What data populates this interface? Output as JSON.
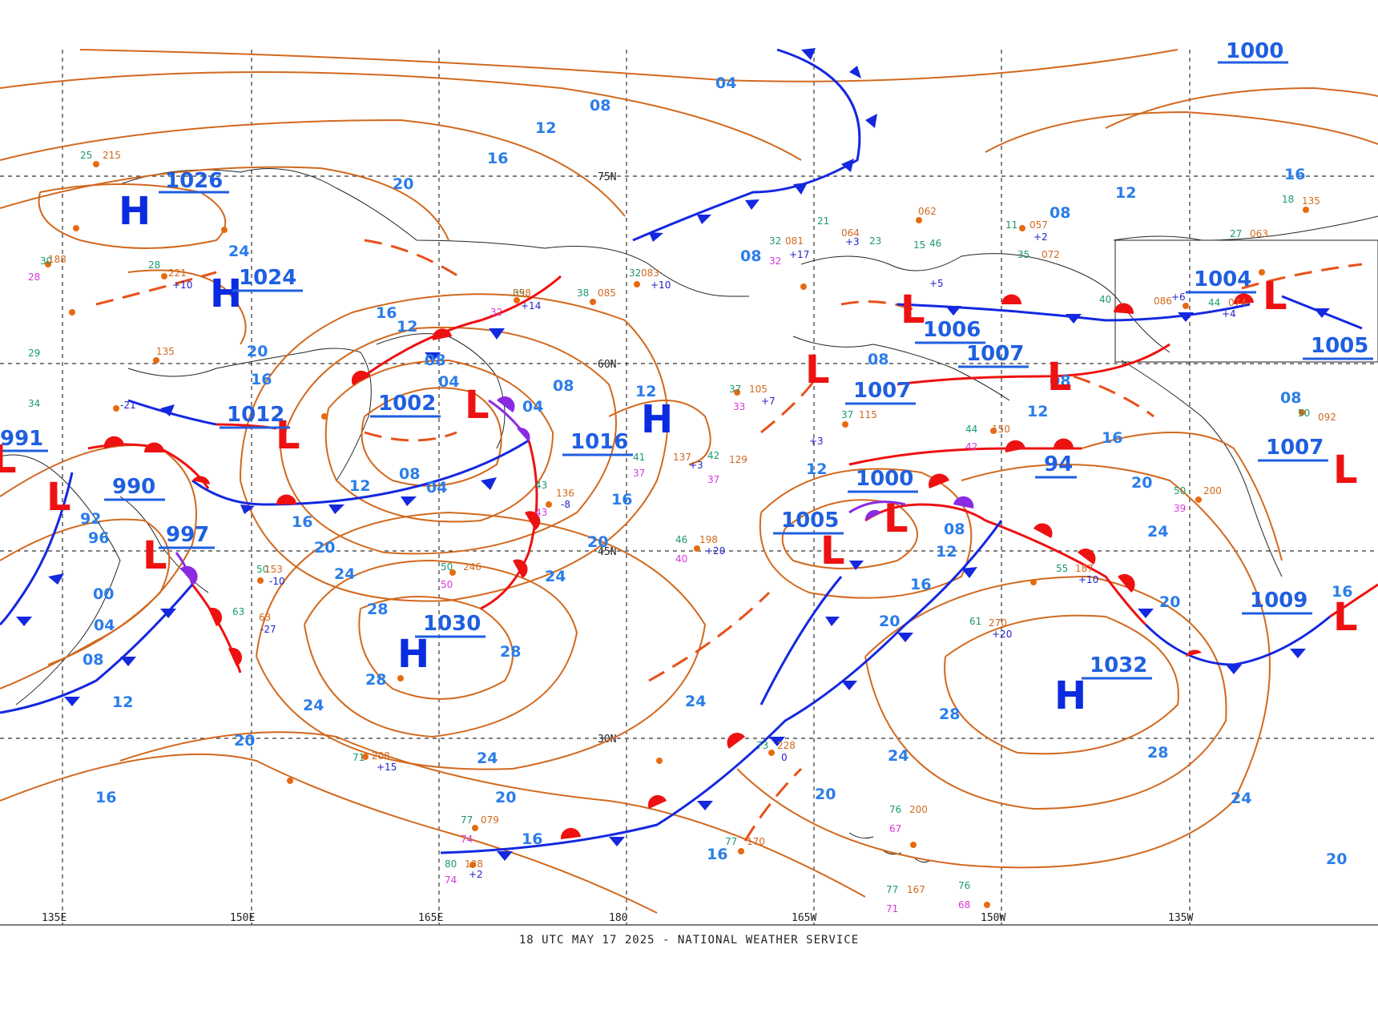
{
  "map": {
    "footer": "18 UTC MAY 17 2025 - NATIONAL WEATHER SERVICE",
    "latitudes": [
      "75N",
      "60N",
      "45N",
      "30N"
    ],
    "longitudes": [
      "135E",
      "150E",
      "165E",
      "180",
      "165W",
      "150W",
      "135W"
    ],
    "colors": {
      "isobar": "#d2691e",
      "isobar_label": "#2b7de9",
      "high": "#0b2be0",
      "low": "#ee1111",
      "cold_front": "#1428e0",
      "warm_front": "#ee1111",
      "occluded_front": "#8a2be2",
      "trough": "#e8501a"
    },
    "highs": [
      {
        "symbol": "H",
        "pressure": "1026"
      },
      {
        "symbol": "H",
        "pressure": "1024"
      },
      {
        "symbol": "H",
        "pressure": ""
      },
      {
        "symbol": "H",
        "pressure": "1030"
      },
      {
        "symbol": "H",
        "pressure": "1032"
      }
    ],
    "lows": [
      {
        "symbol": "L",
        "pressure": "991"
      },
      {
        "symbol": "L",
        "pressure": "990"
      },
      {
        "symbol": "L",
        "pressure": "997"
      },
      {
        "symbol": "L",
        "pressure": "1012"
      },
      {
        "symbol": "L",
        "pressure": "1002"
      },
      {
        "symbol": "L",
        "pressure": "1016"
      },
      {
        "symbol": "L",
        "pressure": "1006"
      },
      {
        "symbol": "L",
        "pressure": "1007"
      },
      {
        "symbol": "L",
        "pressure": "1007"
      },
      {
        "symbol": "L",
        "pressure": "94"
      },
      {
        "symbol": "L",
        "pressure": "1000"
      },
      {
        "symbol": "L",
        "pressure": "1005"
      },
      {
        "symbol": "L",
        "pressure": "1004"
      },
      {
        "symbol": "L",
        "pressure": "1005"
      },
      {
        "symbol": "L",
        "pressure": "1007"
      },
      {
        "symbol": "L",
        "pressure": "1009"
      },
      {
        "symbol": "L",
        "pressure": "1000"
      }
    ],
    "isobar_labels": [
      "04",
      "08",
      "12",
      "16",
      "20",
      "24",
      "28",
      "00",
      "92",
      "96"
    ]
  }
}
